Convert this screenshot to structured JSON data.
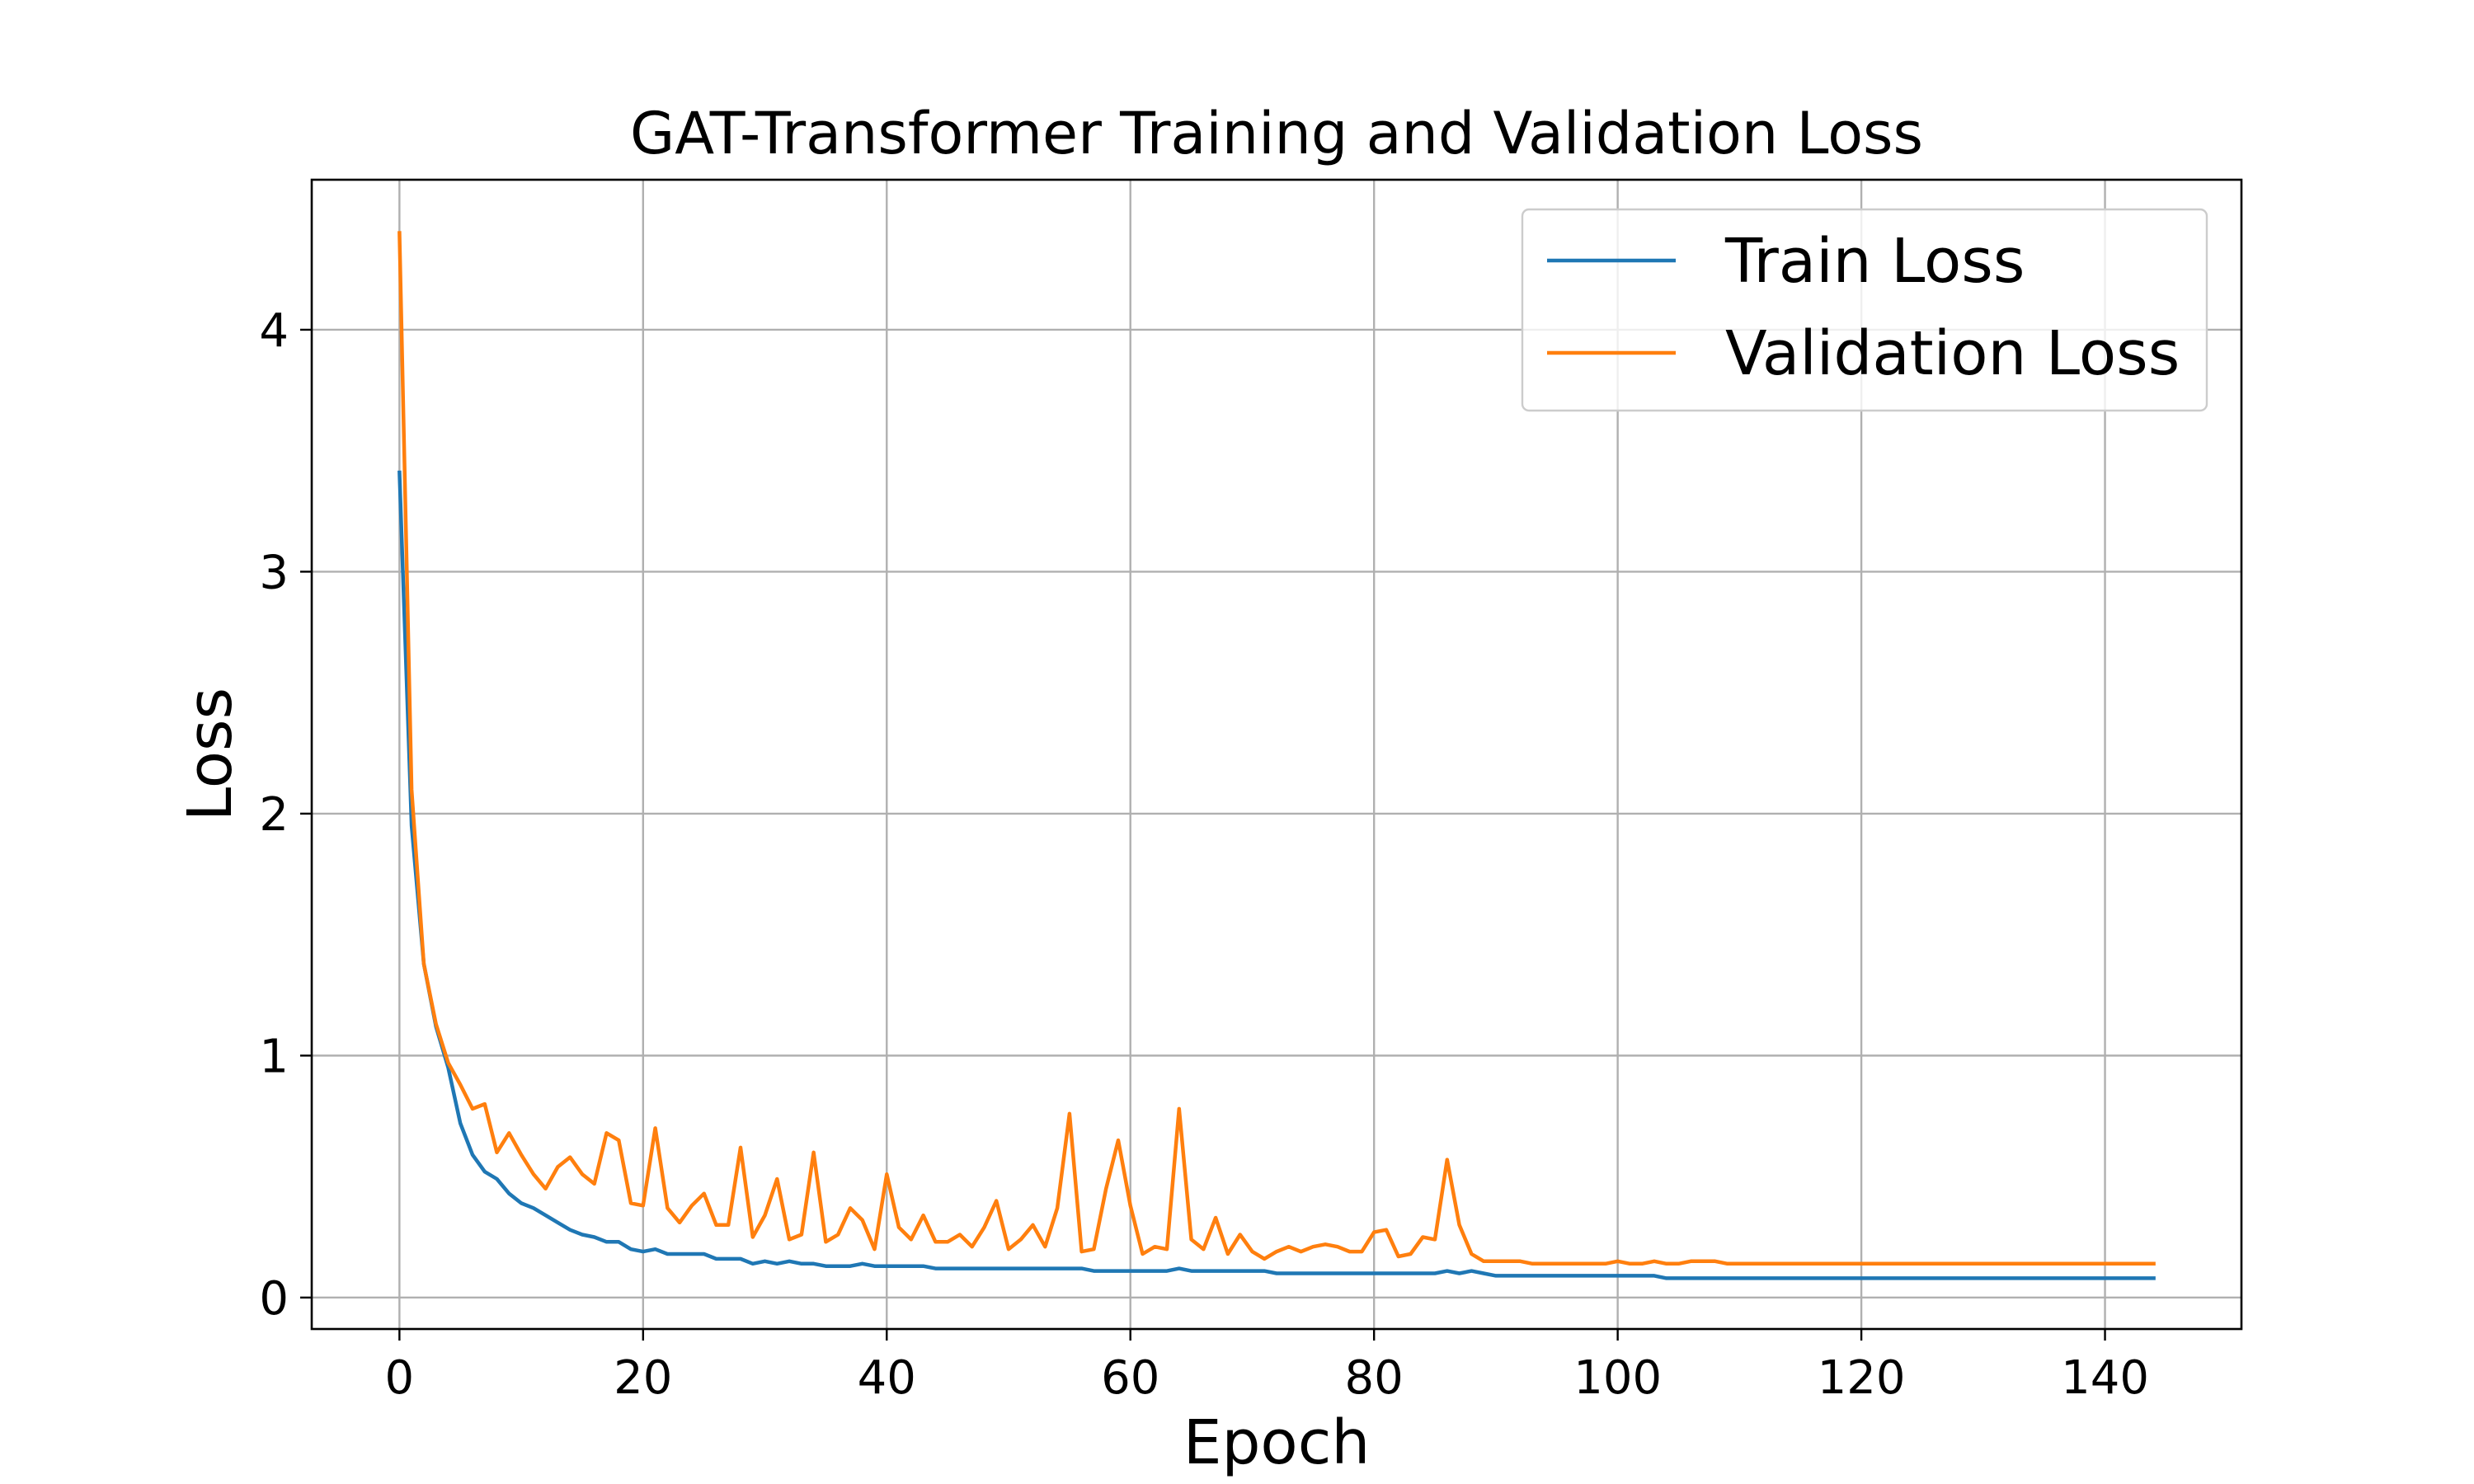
{
  "chart_data": {
    "type": "line",
    "title": "GAT-Transformer Training and Validation Loss",
    "xlabel": "Epoch",
    "ylabel": "Loss",
    "xlim": [
      -7.2,
      151.2
    ],
    "ylim": [
      -0.13,
      4.62
    ],
    "xticks": [
      0,
      20,
      40,
      60,
      80,
      100,
      120,
      140
    ],
    "yticks": [
      0,
      1,
      2,
      3,
      4
    ],
    "grid": true,
    "legend_position": "top-right",
    "series": [
      {
        "name": "Train Loss",
        "color": "#1f77b4",
        "x": [
          0,
          1,
          2,
          3,
          4,
          5,
          6,
          7,
          8,
          9,
          10,
          11,
          12,
          13,
          14,
          15,
          16,
          17,
          18,
          19,
          20,
          21,
          22,
          23,
          24,
          25,
          26,
          27,
          28,
          29,
          30,
          31,
          32,
          33,
          34,
          35,
          36,
          37,
          38,
          39,
          40,
          41,
          42,
          43,
          44,
          45,
          46,
          47,
          48,
          49,
          50,
          51,
          52,
          53,
          54,
          55,
          56,
          57,
          58,
          59,
          60,
          61,
          62,
          63,
          64,
          65,
          66,
          67,
          68,
          69,
          70,
          71,
          72,
          73,
          74,
          75,
          76,
          77,
          78,
          79,
          80,
          81,
          82,
          83,
          84,
          85,
          86,
          87,
          88,
          89,
          90,
          91,
          92,
          93,
          94,
          95,
          96,
          97,
          98,
          99,
          100,
          101,
          102,
          103,
          104,
          105,
          106,
          107,
          108,
          109,
          110,
          111,
          112,
          113,
          114,
          115,
          116,
          117,
          118,
          119,
          120,
          121,
          122,
          123,
          124,
          125,
          126,
          127,
          128,
          129,
          130,
          131,
          132,
          133,
          134,
          135,
          136,
          137,
          138,
          139,
          140,
          141,
          142,
          143,
          144
        ],
        "values": [
          3.41,
          1.95,
          1.38,
          1.12,
          0.95,
          0.72,
          0.59,
          0.52,
          0.49,
          0.43,
          0.39,
          0.37,
          0.34,
          0.31,
          0.28,
          0.26,
          0.25,
          0.23,
          0.23,
          0.2,
          0.19,
          0.2,
          0.18,
          0.18,
          0.18,
          0.18,
          0.16,
          0.16,
          0.16,
          0.14,
          0.15,
          0.14,
          0.15,
          0.14,
          0.14,
          0.13,
          0.13,
          0.13,
          0.14,
          0.13,
          0.13,
          0.13,
          0.13,
          0.13,
          0.12,
          0.12,
          0.12,
          0.12,
          0.12,
          0.12,
          0.12,
          0.12,
          0.12,
          0.12,
          0.12,
          0.12,
          0.12,
          0.11,
          0.11,
          0.11,
          0.11,
          0.11,
          0.11,
          0.11,
          0.12,
          0.11,
          0.11,
          0.11,
          0.11,
          0.11,
          0.11,
          0.11,
          0.1,
          0.1,
          0.1,
          0.1,
          0.1,
          0.1,
          0.1,
          0.1,
          0.1,
          0.1,
          0.1,
          0.1,
          0.1,
          0.1,
          0.11,
          0.1,
          0.11,
          0.1,
          0.09,
          0.09,
          0.09,
          0.09,
          0.09,
          0.09,
          0.09,
          0.09,
          0.09,
          0.09,
          0.09,
          0.09,
          0.09,
          0.09,
          0.08,
          0.08,
          0.08,
          0.08,
          0.08,
          0.08,
          0.08,
          0.08,
          0.08,
          0.08,
          0.08,
          0.08,
          0.08,
          0.08,
          0.08,
          0.08,
          0.08,
          0.08,
          0.08,
          0.08,
          0.08,
          0.08,
          0.08,
          0.08,
          0.08,
          0.08,
          0.08,
          0.08,
          0.08,
          0.08,
          0.08,
          0.08,
          0.08,
          0.08,
          0.08,
          0.08,
          0.08,
          0.08,
          0.08,
          0.08,
          0.08
        ]
      },
      {
        "name": "Validation Loss",
        "color": "#ff7f0e",
        "x": [
          0,
          1,
          2,
          3,
          4,
          5,
          6,
          7,
          8,
          9,
          10,
          11,
          12,
          13,
          14,
          15,
          16,
          17,
          18,
          19,
          20,
          21,
          22,
          23,
          24,
          25,
          26,
          27,
          28,
          29,
          30,
          31,
          32,
          33,
          34,
          35,
          36,
          37,
          38,
          39,
          40,
          41,
          42,
          43,
          44,
          45,
          46,
          47,
          48,
          49,
          50,
          51,
          52,
          53,
          54,
          55,
          56,
          57,
          58,
          59,
          60,
          61,
          62,
          63,
          64,
          65,
          66,
          67,
          68,
          69,
          70,
          71,
          72,
          73,
          74,
          75,
          76,
          77,
          78,
          79,
          80,
          81,
          82,
          83,
          84,
          85,
          86,
          87,
          88,
          89,
          90,
          91,
          92,
          93,
          94,
          95,
          96,
          97,
          98,
          99,
          100,
          101,
          102,
          103,
          104,
          105,
          106,
          107,
          108,
          109,
          110,
          111,
          112,
          113,
          114,
          115,
          116,
          117,
          118,
          119,
          120,
          121,
          122,
          123,
          124,
          125,
          126,
          127,
          128,
          129,
          130,
          131,
          132,
          133,
          134,
          135,
          136,
          137,
          138,
          139,
          140,
          141,
          142,
          143,
          144
        ],
        "values": [
          4.4,
          2.1,
          1.38,
          1.13,
          0.97,
          0.88,
          0.78,
          0.8,
          0.6,
          0.68,
          0.59,
          0.51,
          0.45,
          0.54,
          0.58,
          0.51,
          0.47,
          0.68,
          0.65,
          0.39,
          0.38,
          0.7,
          0.37,
          0.31,
          0.38,
          0.43,
          0.3,
          0.3,
          0.62,
          0.25,
          0.34,
          0.49,
          0.24,
          0.26,
          0.6,
          0.23,
          0.26,
          0.37,
          0.32,
          0.2,
          0.51,
          0.29,
          0.24,
          0.34,
          0.23,
          0.23,
          0.26,
          0.21,
          0.29,
          0.4,
          0.2,
          0.24,
          0.3,
          0.21,
          0.37,
          0.76,
          0.19,
          0.2,
          0.45,
          0.65,
          0.38,
          0.18,
          0.21,
          0.2,
          0.78,
          0.24,
          0.2,
          0.33,
          0.18,
          0.26,
          0.19,
          0.16,
          0.19,
          0.21,
          0.19,
          0.21,
          0.22,
          0.21,
          0.19,
          0.19,
          0.27,
          0.28,
          0.17,
          0.18,
          0.25,
          0.24,
          0.57,
          0.3,
          0.18,
          0.15,
          0.15,
          0.15,
          0.15,
          0.14,
          0.14,
          0.14,
          0.14,
          0.14,
          0.14,
          0.14,
          0.15,
          0.14,
          0.14,
          0.15,
          0.14,
          0.14,
          0.15,
          0.15,
          0.15,
          0.14,
          0.14,
          0.14,
          0.14,
          0.14,
          0.14,
          0.14,
          0.14,
          0.14,
          0.14,
          0.14,
          0.14,
          0.14,
          0.14,
          0.14,
          0.14,
          0.14,
          0.14,
          0.14,
          0.14,
          0.14,
          0.14,
          0.14,
          0.14,
          0.14,
          0.14,
          0.14,
          0.14,
          0.14,
          0.14,
          0.14,
          0.14,
          0.14,
          0.14,
          0.14,
          0.14
        ]
      }
    ]
  }
}
